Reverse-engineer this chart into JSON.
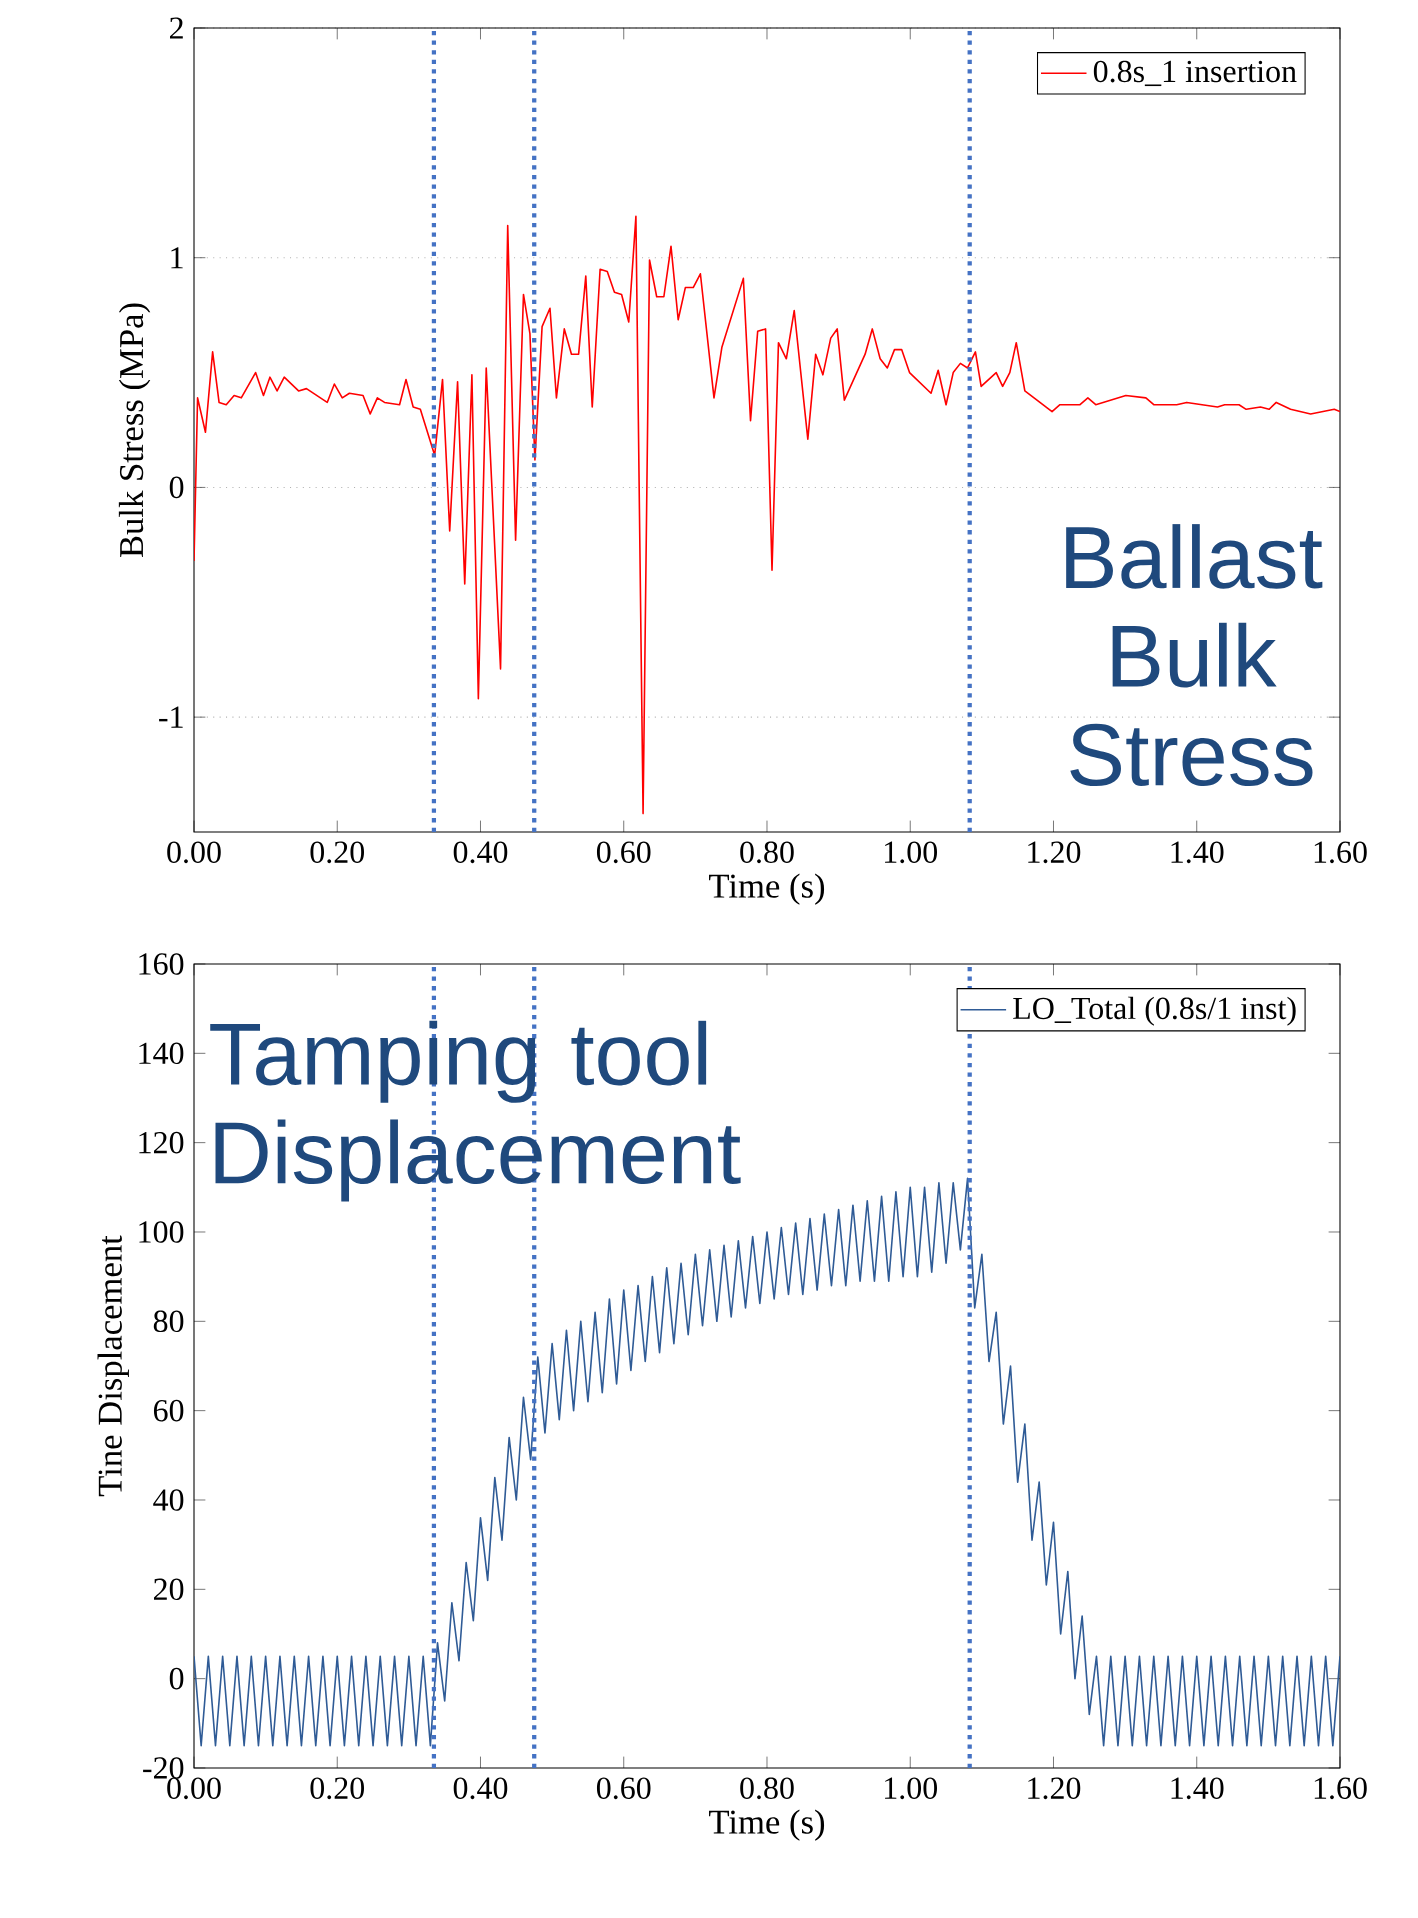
{
  "chart_data": [
    {
      "type": "line",
      "xlabel": "Time (s)",
      "ylabel": "Bulk Stress (MPa)",
      "xlim": [
        0,
        1.6
      ],
      "ylim": [
        -1.5,
        2
      ],
      "xticks": [
        {
          "value": 0,
          "label": "0.00"
        },
        {
          "value": 0.2,
          "label": "0.20"
        },
        {
          "value": 0.4,
          "label": "0.40"
        },
        {
          "value": 0.6,
          "label": "0.60"
        },
        {
          "value": 0.8,
          "label": "0.80"
        },
        {
          "value": 1.0,
          "label": "1.00"
        },
        {
          "value": 1.2,
          "label": "1.20"
        },
        {
          "value": 1.4,
          "label": "1.40"
        },
        {
          "value": 1.6,
          "label": "1.60"
        }
      ],
      "yticks": [
        -1,
        0,
        1,
        2
      ],
      "grid": "y",
      "legend": "top right",
      "line_style": "solid",
      "annotations": [
        "Ballast Bulk Stress"
      ],
      "ref_lines": [
        {
          "axis": "x",
          "value": 0.335,
          "color": "#4472c4",
          "line_style": "dotted"
        },
        {
          "axis": "x",
          "value": 0.475,
          "color": "#4472c4",
          "line_style": "dotted"
        },
        {
          "axis": "x",
          "value": 1.083,
          "color": "#4472c4",
          "line_style": "dotted"
        }
      ],
      "series": [
        {
          "name": "0.8s_1 insertion",
          "color": "#ff0000",
          "x": [
            0,
            0.005,
            0.016,
            0.026,
            0.035,
            0.045,
            0.056,
            0.066,
            0.086,
            0.097,
            0.106,
            0.116,
            0.126,
            0.146,
            0.157,
            0.186,
            0.196,
            0.207,
            0.217,
            0.236,
            0.246,
            0.256,
            0.266,
            0.287,
            0.296,
            0.306,
            0.316,
            0.336,
            0.347,
            0.357,
            0.368,
            0.378,
            0.388,
            0.397,
            0.408,
            0.428,
            0.438,
            0.449,
            0.46,
            0.469,
            0.476,
            0.486,
            0.497,
            0.506,
            0.517,
            0.527,
            0.537,
            0.547,
            0.556,
            0.567,
            0.577,
            0.587,
            0.597,
            0.607,
            0.617,
            0.627,
            0.636,
            0.646,
            0.656,
            0.666,
            0.676,
            0.686,
            0.697,
            0.707,
            0.726,
            0.737,
            0.767,
            0.777,
            0.787,
            0.798,
            0.807,
            0.816,
            0.827,
            0.838,
            0.857,
            0.868,
            0.878,
            0.889,
            0.898,
            0.908,
            0.937,
            0.947,
            0.958,
            0.968,
            0.978,
            0.988,
            0.999,
            1.029,
            1.039,
            1.05,
            1.06,
            1.07,
            1.08,
            1.091,
            1.099,
            1.12,
            1.129,
            1.139,
            1.148,
            1.16,
            1.198,
            1.209,
            1.237,
            1.248,
            1.259,
            1.301,
            1.329,
            1.34,
            1.372,
            1.386,
            1.429,
            1.439,
            1.459,
            1.469,
            1.489,
            1.501,
            1.511,
            1.531,
            1.559,
            1.592,
            1.6
          ],
          "values": [
            -0.32,
            0.39,
            0.24,
            0.59,
            0.37,
            0.36,
            0.4,
            0.39,
            0.5,
            0.4,
            0.48,
            0.42,
            0.48,
            0.42,
            0.43,
            0.37,
            0.45,
            0.39,
            0.41,
            0.4,
            0.32,
            0.39,
            0.37,
            0.36,
            0.47,
            0.35,
            0.34,
            0.14,
            0.47,
            -0.19,
            0.46,
            -0.42,
            0.49,
            -0.92,
            0.52,
            -0.79,
            1.14,
            -0.23,
            0.84,
            0.67,
            0.12,
            0.7,
            0.78,
            0.39,
            0.69,
            0.58,
            0.58,
            0.92,
            0.35,
            0.95,
            0.94,
            0.85,
            0.84,
            0.72,
            1.18,
            -1.42,
            0.99,
            0.83,
            0.83,
            1.05,
            0.73,
            0.87,
            0.87,
            0.93,
            0.39,
            0.61,
            0.91,
            0.29,
            0.68,
            0.69,
            -0.36,
            0.63,
            0.56,
            0.77,
            0.21,
            0.58,
            0.49,
            0.65,
            0.69,
            0.38,
            0.58,
            0.69,
            0.56,
            0.52,
            0.6,
            0.6,
            0.5,
            0.41,
            0.51,
            0.36,
            0.5,
            0.54,
            0.52,
            0.59,
            0.44,
            0.5,
            0.44,
            0.5,
            0.63,
            0.42,
            0.33,
            0.36,
            0.36,
            0.39,
            0.36,
            0.4,
            0.39,
            0.36,
            0.36,
            0.37,
            0.35,
            0.36,
            0.36,
            0.34,
            0.35,
            0.34,
            0.37,
            0.34,
            0.32,
            0.34,
            0.33
          ]
        }
      ]
    },
    {
      "type": "line",
      "xlabel": "Time (s)",
      "ylabel": "Tine Displacement",
      "xlim": [
        0,
        1.6
      ],
      "ylim": [
        -20,
        160
      ],
      "xticks": [
        {
          "value": 0,
          "label": "0.00"
        },
        {
          "value": 0.2,
          "label": "0.20"
        },
        {
          "value": 0.4,
          "label": "0.40"
        },
        {
          "value": 0.6,
          "label": "0.60"
        },
        {
          "value": 0.8,
          "label": "0.80"
        },
        {
          "value": 1.0,
          "label": "1.00"
        },
        {
          "value": 1.2,
          "label": "1.20"
        },
        {
          "value": 1.4,
          "label": "1.40"
        },
        {
          "value": 1.6,
          "label": "1.60"
        }
      ],
      "yticks": [
        -20,
        0,
        20,
        40,
        60,
        80,
        100,
        120,
        140,
        160
      ],
      "legend": "top right",
      "line_style": "solid",
      "annotations": [
        "Tamping tool Displacement"
      ],
      "ref_lines": [
        {
          "axis": "x",
          "value": 0.335,
          "color": "#4472c4",
          "line_style": "dotted"
        },
        {
          "axis": "x",
          "value": 0.475,
          "color": "#4472c4",
          "line_style": "dotted"
        },
        {
          "axis": "x",
          "value": 1.083,
          "color": "#4472c4",
          "line_style": "dotted"
        }
      ],
      "series": [
        {
          "name": "LO_Total (0.8s/1 inst)",
          "color": "#2f5b96",
          "x": [
            0,
            0.01,
            0.02,
            0.03,
            0.04,
            0.05,
            0.06,
            0.07,
            0.08,
            0.09,
            0.1,
            0.11,
            0.12,
            0.13,
            0.14,
            0.15,
            0.16,
            0.17,
            0.18,
            0.19,
            0.2,
            0.21,
            0.22,
            0.23,
            0.24,
            0.25,
            0.26,
            0.27,
            0.28,
            0.29,
            0.3,
            0.31,
            0.32,
            0.33,
            0.34,
            0.35,
            0.36,
            0.37,
            0.38,
            0.39,
            0.4,
            0.41,
            0.42,
            0.43,
            0.44,
            0.45,
            0.46,
            0.47,
            0.48,
            0.49,
            0.5,
            0.51,
            0.52,
            0.53,
            0.54,
            0.55,
            0.56,
            0.57,
            0.58,
            0.59,
            0.6,
            0.61,
            0.62,
            0.63,
            0.64,
            0.65,
            0.66,
            0.67,
            0.68,
            0.69,
            0.7,
            0.71,
            0.72,
            0.73,
            0.74,
            0.75,
            0.76,
            0.77,
            0.78,
            0.79,
            0.8,
            0.81,
            0.82,
            0.83,
            0.84,
            0.85,
            0.86,
            0.87,
            0.88,
            0.89,
            0.9,
            0.91,
            0.92,
            0.93,
            0.94,
            0.95,
            0.96,
            0.97,
            0.98,
            0.99,
            1.0,
            1.01,
            1.02,
            1.03,
            1.04,
            1.05,
            1.06,
            1.07,
            1.08,
            1.09,
            1.1,
            1.11,
            1.12,
            1.13,
            1.14,
            1.15,
            1.16,
            1.17,
            1.18,
            1.19,
            1.2,
            1.21,
            1.22,
            1.23,
            1.24,
            1.25,
            1.26,
            1.27,
            1.28,
            1.29,
            1.3,
            1.31,
            1.32,
            1.33,
            1.34,
            1.35,
            1.36,
            1.37,
            1.38,
            1.39,
            1.4,
            1.41,
            1.42,
            1.43,
            1.44,
            1.45,
            1.46,
            1.47,
            1.48,
            1.49,
            1.5,
            1.51,
            1.52,
            1.53,
            1.54,
            1.55,
            1.56,
            1.57,
            1.58,
            1.59,
            1.6
          ],
          "values": [
            5,
            -15,
            5,
            -15,
            5,
            -15,
            5,
            -15,
            5,
            -15,
            5,
            -15,
            5,
            -15,
            5,
            -15,
            5,
            -15,
            5,
            -15,
            5,
            -15,
            5,
            -15,
            5,
            -15,
            5,
            -15,
            5,
            -15,
            5,
            -15,
            5,
            -15,
            8,
            -5,
            17,
            4,
            26,
            13,
            36,
            22,
            45,
            31,
            54,
            40,
            63,
            49,
            72,
            55,
            75,
            58,
            78,
            60,
            80,
            62,
            82,
            64,
            85,
            66,
            87,
            69,
            88,
            71,
            90,
            73,
            92,
            75,
            93,
            77,
            95,
            79,
            96,
            80,
            97,
            81,
            98,
            83,
            99,
            84,
            100,
            85,
            101,
            86,
            102,
            86,
            103,
            87,
            104,
            88,
            105,
            88,
            106,
            89,
            107,
            89,
            108,
            89,
            109,
            90,
            110,
            90,
            110,
            91,
            111,
            93,
            111,
            96,
            112,
            83,
            95,
            71,
            82,
            57,
            70,
            44,
            57,
            31,
            44,
            21,
            35,
            10,
            24,
            0,
            14,
            -8,
            5,
            -15,
            5,
            -15,
            5,
            -15,
            5,
            -15,
            5,
            -15,
            5,
            -15,
            5,
            -15,
            5,
            -15,
            5,
            -15,
            5,
            -15,
            5,
            -15,
            5,
            -15,
            5,
            -15,
            5,
            -15,
            5,
            -15,
            5,
            -15,
            5,
            -15,
            5
          ]
        }
      ]
    }
  ]
}
